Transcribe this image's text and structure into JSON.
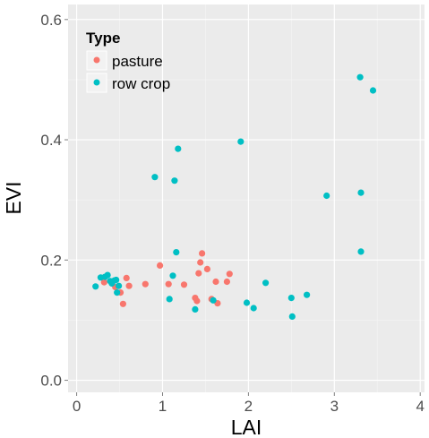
{
  "chart_data": {
    "type": "scatter",
    "xlabel": "LAI",
    "ylabel": "EVI",
    "xlim": [
      -0.1,
      4.05
    ],
    "ylim": [
      -0.02,
      0.625
    ],
    "x_ticks": [
      0,
      1,
      2,
      3,
      4
    ],
    "x_tick_labels": [
      "0",
      "1",
      "2",
      "3",
      "4"
    ],
    "y_ticks": [
      0.0,
      0.2,
      0.4,
      0.6
    ],
    "y_tick_labels": [
      "0.0",
      "0.2",
      "0.4",
      "0.6"
    ],
    "grid": true,
    "background": "#ebebeb",
    "legend": {
      "title": "Type",
      "position": "top-left"
    },
    "series": [
      {
        "name": "pasture",
        "color": "#f8766d",
        "points": [
          [
            0.32,
            0.163
          ],
          [
            0.45,
            0.155
          ],
          [
            0.51,
            0.146
          ],
          [
            0.54,
            0.127
          ],
          [
            0.58,
            0.17
          ],
          [
            0.61,
            0.157
          ],
          [
            0.8,
            0.16
          ],
          [
            0.97,
            0.191
          ],
          [
            1.07,
            0.16
          ],
          [
            1.25,
            0.159
          ],
          [
            1.38,
            0.137
          ],
          [
            1.4,
            0.132
          ],
          [
            1.42,
            0.178
          ],
          [
            1.44,
            0.196
          ],
          [
            1.46,
            0.211
          ],
          [
            1.52,
            0.185
          ],
          [
            1.57,
            0.135
          ],
          [
            1.62,
            0.164
          ],
          [
            1.64,
            0.128
          ],
          [
            1.75,
            0.164
          ],
          [
            1.78,
            0.177
          ]
        ]
      },
      {
        "name": "row crop",
        "color": "#00bfc4",
        "points": [
          [
            0.22,
            0.156
          ],
          [
            0.28,
            0.171
          ],
          [
            0.33,
            0.172
          ],
          [
            0.36,
            0.175
          ],
          [
            0.39,
            0.165
          ],
          [
            0.41,
            0.161
          ],
          [
            0.44,
            0.166
          ],
          [
            0.46,
            0.167
          ],
          [
            0.47,
            0.146
          ],
          [
            0.49,
            0.157
          ],
          [
            0.91,
            0.338
          ],
          [
            1.08,
            0.135
          ],
          [
            1.12,
            0.174
          ],
          [
            1.14,
            0.332
          ],
          [
            1.16,
            0.213
          ],
          [
            1.18,
            0.385
          ],
          [
            1.38,
            0.118
          ],
          [
            1.59,
            0.133
          ],
          [
            1.91,
            0.397
          ],
          [
            1.98,
            0.129
          ],
          [
            2.06,
            0.12
          ],
          [
            2.2,
            0.162
          ],
          [
            2.5,
            0.137
          ],
          [
            2.51,
            0.106
          ],
          [
            2.68,
            0.142
          ],
          [
            2.91,
            0.307
          ],
          [
            3.3,
            0.504
          ],
          [
            3.31,
            0.214
          ],
          [
            3.31,
            0.312
          ],
          [
            3.45,
            0.482
          ]
        ]
      }
    ]
  }
}
